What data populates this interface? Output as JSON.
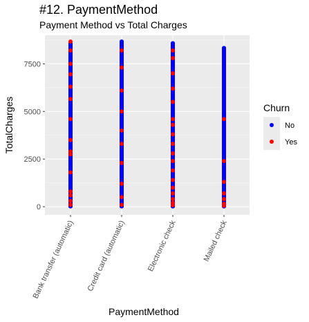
{
  "header": {
    "title": "#12. PaymentMethod",
    "subtitle": "Payment Method vs Total Charges"
  },
  "chart_data": {
    "type": "scatter",
    "title": "#12. PaymentMethod",
    "subtitle": "Payment Method vs Total Charges",
    "xlabel": "PaymentMethod",
    "ylabel": "TotalCharges",
    "categories": [
      "Bank transfer (automatic)",
      "Credit card (automatic)",
      "Electronic check",
      "Mailed check"
    ],
    "yticks": [
      0,
      2500,
      5000,
      7500
    ],
    "ytick_labels": [
      "0",
      "2500",
      "5000",
      "7500"
    ],
    "ylim": [
      -430,
      9000
    ],
    "grid": true,
    "legend": {
      "title": "Churn",
      "position": "right",
      "entries": [
        {
          "label": "No",
          "color": "#0000ff"
        },
        {
          "label": "Yes",
          "color": "#ff0000"
        }
      ]
    },
    "series": [
      {
        "name": "No",
        "color": "#0000ff",
        "ranges": [
          {
            "category": "Bank transfer (automatic)",
            "min": 20,
            "max": 8560
          },
          {
            "category": "Credit card (automatic)",
            "min": 20,
            "max": 8670
          },
          {
            "category": "Electronic check",
            "min": 20,
            "max": 8580
          },
          {
            "category": "Mailed check",
            "min": 20,
            "max": 8330
          }
        ]
      },
      {
        "name": "Yes",
        "color": "#ff0000",
        "points": [
          {
            "x": "Bank transfer (automatic)",
            "y": 8670
          },
          {
            "x": "Bank transfer (automatic)",
            "y": 8200
          },
          {
            "x": "Bank transfer (automatic)",
            "y": 7500
          },
          {
            "x": "Bank transfer (automatic)",
            "y": 6950
          },
          {
            "x": "Bank transfer (automatic)",
            "y": 6300
          },
          {
            "x": "Bank transfer (automatic)",
            "y": 5650
          },
          {
            "x": "Bank transfer (automatic)",
            "y": 4600
          },
          {
            "x": "Bank transfer (automatic)",
            "y": 3500
          },
          {
            "x": "Bank transfer (automatic)",
            "y": 2900
          },
          {
            "x": "Bank transfer (automatic)",
            "y": 2750
          },
          {
            "x": "Bank transfer (automatic)",
            "y": 1800
          },
          {
            "x": "Bank transfer (automatic)",
            "y": 800
          },
          {
            "x": "Bank transfer (automatic)",
            "y": 600
          },
          {
            "x": "Bank transfer (automatic)",
            "y": 300
          },
          {
            "x": "Bank transfer (automatic)",
            "y": 100
          },
          {
            "x": "Credit card (automatic)",
            "y": 8200
          },
          {
            "x": "Credit card (automatic)",
            "y": 7300
          },
          {
            "x": "Credit card (automatic)",
            "y": 6100
          },
          {
            "x": "Credit card (automatic)",
            "y": 5000
          },
          {
            "x": "Credit card (automatic)",
            "y": 4000
          },
          {
            "x": "Credit card (automatic)",
            "y": 3300
          },
          {
            "x": "Credit card (automatic)",
            "y": 2300
          },
          {
            "x": "Credit card (automatic)",
            "y": 1200
          },
          {
            "x": "Credit card (automatic)",
            "y": 500
          },
          {
            "x": "Credit card (automatic)",
            "y": 100
          },
          {
            "x": "Electronic check",
            "y": 8200
          },
          {
            "x": "Electronic check",
            "y": 7800
          },
          {
            "x": "Electronic check",
            "y": 7000
          },
          {
            "x": "Electronic check",
            "y": 6200
          },
          {
            "x": "Electronic check",
            "y": 5500
          },
          {
            "x": "Electronic check",
            "y": 4600
          },
          {
            "x": "Electronic check",
            "y": 4300
          },
          {
            "x": "Electronic check",
            "y": 3800
          },
          {
            "x": "Electronic check",
            "y": 3300
          },
          {
            "x": "Electronic check",
            "y": 2800
          },
          {
            "x": "Electronic check",
            "y": 2400
          },
          {
            "x": "Electronic check",
            "y": 1900
          },
          {
            "x": "Electronic check",
            "y": 1400
          },
          {
            "x": "Electronic check",
            "y": 1000
          },
          {
            "x": "Electronic check",
            "y": 700
          },
          {
            "x": "Electronic check",
            "y": 400
          },
          {
            "x": "Electronic check",
            "y": 200
          },
          {
            "x": "Electronic check",
            "y": 80
          },
          {
            "x": "Mailed check",
            "y": 4600
          },
          {
            "x": "Mailed check",
            "y": 2400
          },
          {
            "x": "Mailed check",
            "y": 1300
          },
          {
            "x": "Mailed check",
            "y": 700
          },
          {
            "x": "Mailed check",
            "y": 400
          },
          {
            "x": "Mailed check",
            "y": 150
          },
          {
            "x": "Mailed check",
            "y": 50
          }
        ]
      }
    ]
  }
}
